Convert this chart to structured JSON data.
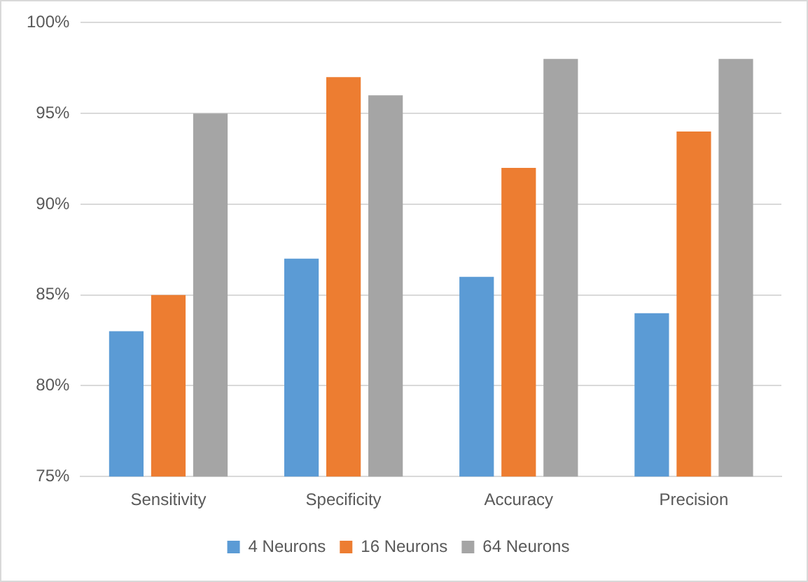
{
  "chart_data": {
    "type": "bar",
    "categories": [
      "Sensitivity",
      "Specificity",
      "Accuracy",
      "Precision"
    ],
    "series": [
      {
        "name": "4 Neurons",
        "color": "#5b9bd5",
        "values": [
          83,
          87,
          86,
          84
        ]
      },
      {
        "name": "16 Neurons",
        "color": "#ed7d31",
        "values": [
          85,
          97,
          92,
          94
        ]
      },
      {
        "name": "64 Neurons",
        "color": "#a5a5a5",
        "values": [
          95,
          96,
          98,
          98
        ]
      }
    ],
    "ylim": [
      75,
      100
    ],
    "yticks": [
      {
        "value": 75,
        "label": "75%"
      },
      {
        "value": 80,
        "label": "80%"
      },
      {
        "value": 85,
        "label": "85%"
      },
      {
        "value": 90,
        "label": "90%"
      },
      {
        "value": 95,
        "label": "95%"
      },
      {
        "value": 100,
        "label": "100%"
      }
    ],
    "grid": "y",
    "legend": "bottom"
  }
}
